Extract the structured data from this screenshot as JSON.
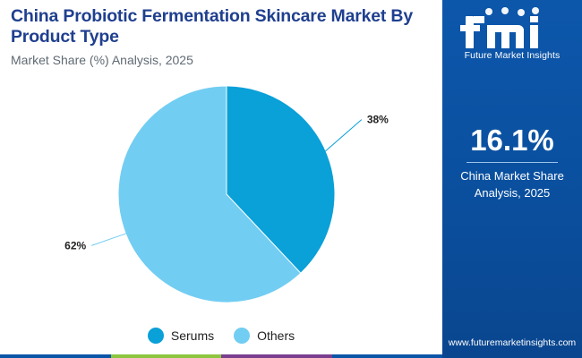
{
  "header": {
    "title": "China Probiotic Fermentation Skincare Market By Product Type",
    "subtitle": "Market Share (%) Analysis, 2025"
  },
  "chart_data": {
    "type": "pie",
    "title": "China Probiotic Fermentation Skincare Market By Product Type",
    "subtitle": "Market Share (%) Analysis, 2025",
    "categories": [
      "Serums",
      "Others"
    ],
    "values": [
      38,
      62
    ],
    "labels": [
      "38%",
      "62%"
    ],
    "colors": [
      "#0aa0d8",
      "#72cdf2"
    ],
    "legend_position": "bottom"
  },
  "legend": {
    "items": [
      {
        "label": "Serums",
        "color": "#0aa0d8"
      },
      {
        "label": "Others",
        "color": "#72cdf2"
      }
    ]
  },
  "sidebar": {
    "logo_text": "Future Market Insights",
    "stat_value": "16.1%",
    "stat_caption_line1": "China Market Share",
    "stat_caption_line2": "Analysis, 2025",
    "website": "www.futuremarketinsights.com",
    "background_color": "#0b55a8"
  },
  "footer_bar_colors": [
    "#0b55a8",
    "#8cc63f",
    "#7a3e8f",
    "#0b55a8"
  ]
}
